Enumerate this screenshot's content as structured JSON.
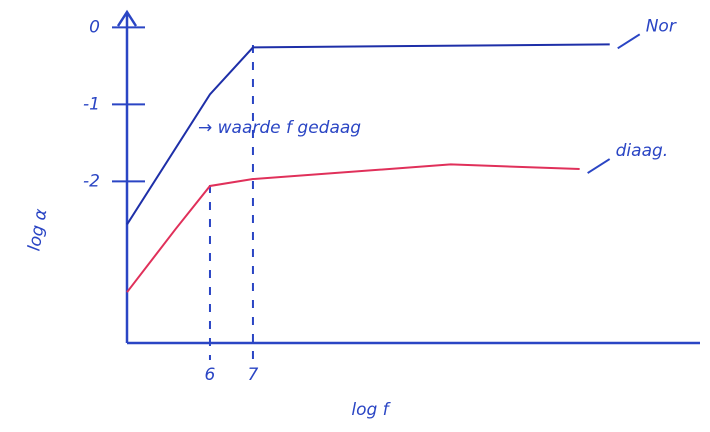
{
  "chart_data": {
    "type": "line",
    "x_label": "log f",
    "y_label": "log α",
    "annotation": "→ waarde f gedaag",
    "xlim": [
      4,
      17.4
    ],
    "xticks": [
      6,
      7
    ],
    "ylim": [
      -4.1,
      0.2
    ],
    "yticks": [
      0,
      -1,
      -2
    ],
    "series": [
      {
        "name": "Nor",
        "color": "#1e2fa8",
        "x": [
          4.07,
          6,
          7,
          15.3
        ],
        "values": [
          -2.56,
          -0.87,
          -0.26,
          -0.22
        ]
      },
      {
        "name": "diaag.",
        "color": "#e0305a",
        "x": [
          4.07,
          5.2,
          6,
          7,
          11.6,
          14.6
        ],
        "values": [
          -3.44,
          -2.62,
          -2.06,
          -1.97,
          -1.78,
          -1.84
        ]
      }
    ]
  }
}
